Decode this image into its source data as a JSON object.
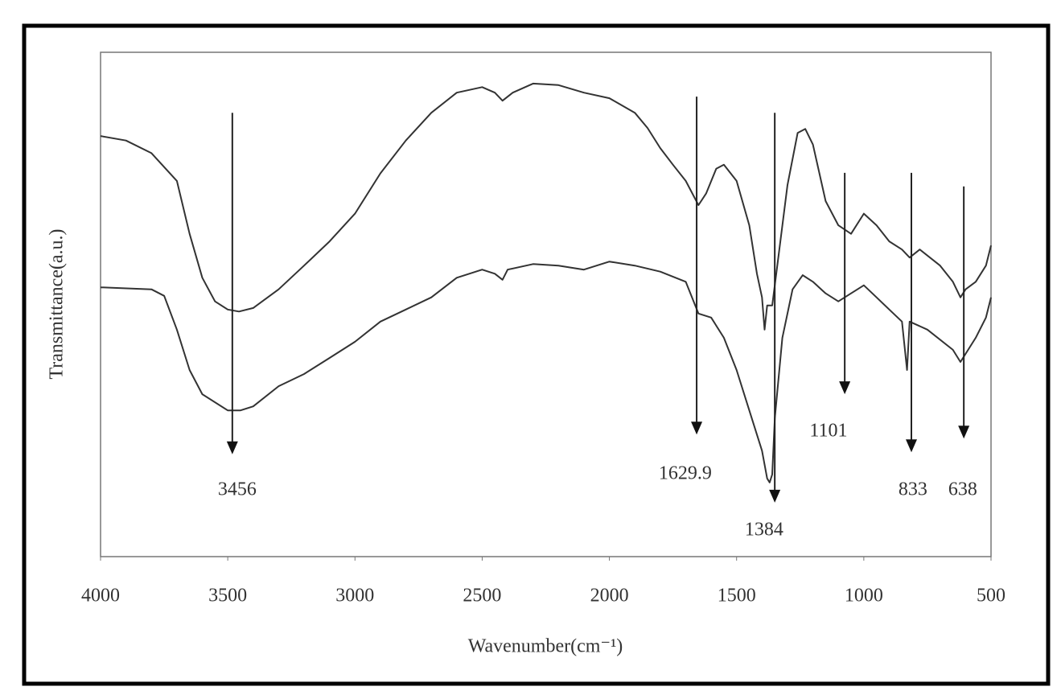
{
  "chart_data": {
    "type": "line",
    "xlabel": "Wavenumber(cm⁻¹)",
    "ylabel": "Transmittance(a.u.)",
    "xlim": [
      4000,
      500
    ],
    "xticks": [
      4000,
      3500,
      3000,
      2500,
      2000,
      1500,
      1000,
      500
    ],
    "ylim": [
      0,
      100
    ],
    "series": [
      {
        "color": "#333333",
        "x": [
          4000,
          3900,
          3800,
          3700,
          3650,
          3600,
          3550,
          3500,
          3456,
          3400,
          3300,
          3200,
          3100,
          3000,
          2900,
          2800,
          2700,
          2600,
          2500,
          2450,
          2420,
          2380,
          2300,
          2200,
          2100,
          2000,
          1900,
          1850,
          1800,
          1750,
          1700,
          1650,
          1620,
          1580,
          1550,
          1500,
          1450,
          1420,
          1400,
          1390,
          1380,
          1360,
          1340,
          1300,
          1260,
          1230,
          1200,
          1150,
          1100,
          1050,
          1000,
          950,
          900,
          850,
          820,
          780,
          700,
          650,
          620,
          600,
          560,
          520,
          500
        ],
        "values": [
          83.4,
          82.5,
          80,
          74.5,
          64,
          55.3,
          50.6,
          49,
          48.6,
          49.3,
          53,
          57.7,
          62.5,
          68,
          76,
          82.5,
          88,
          92,
          93.1,
          92,
          90.4,
          92,
          93.8,
          93.5,
          92,
          90.9,
          88,
          85,
          81,
          77.7,
          74.5,
          69.7,
          72,
          76.9,
          77.7,
          74.5,
          65.7,
          56.1,
          51.4,
          45,
          49.8,
          49.8,
          57.7,
          73.7,
          84,
          84.8,
          81.7,
          70.5,
          65.7,
          64,
          68,
          65.7,
          62.5,
          60.9,
          59.3,
          60.9,
          57.7,
          54.5,
          51.4,
          53,
          54.5,
          57.7,
          61.7
        ]
      },
      {
        "color": "#333333",
        "x": [
          4000,
          3800,
          3750,
          3700,
          3650,
          3600,
          3500,
          3450,
          3400,
          3300,
          3200,
          3100,
          3000,
          2900,
          2800,
          2700,
          2600,
          2500,
          2450,
          2420,
          2400,
          2300,
          2200,
          2100,
          2000,
          1900,
          1800,
          1700,
          1650,
          1600,
          1550,
          1500,
          1450,
          1400,
          1380,
          1370,
          1360,
          1350,
          1320,
          1280,
          1240,
          1200,
          1150,
          1100,
          1050,
          1000,
          950,
          900,
          850,
          830,
          820,
          750,
          650,
          620,
          600,
          560,
          520,
          500
        ],
        "values": [
          53.4,
          53,
          51.7,
          45,
          37,
          32.2,
          29,
          29,
          29.8,
          33.8,
          36.2,
          39.4,
          42.6,
          46.6,
          49,
          51.4,
          55.3,
          56.9,
          56.1,
          54.9,
          56.9,
          58,
          57.7,
          56.9,
          58.5,
          57.7,
          56.5,
          54.5,
          48.2,
          47.4,
          43.4,
          37,
          29,
          21,
          15.5,
          14.7,
          16.3,
          27.4,
          43.4,
          53,
          55.8,
          54.5,
          52.2,
          50.6,
          52.2,
          53.8,
          51.4,
          49,
          46.6,
          37,
          46.6,
          45,
          41,
          38.6,
          40.2,
          43.4,
          47.4,
          51.4
        ]
      }
    ],
    "annotations": [
      {
        "text": "3456",
        "x": 3482,
        "y_from": 88,
        "y_to": 20.3,
        "label_x": 3463,
        "label_y": 13.1
      },
      {
        "text": "1629.9",
        "x": 1657,
        "y_from": 91.2,
        "y_to": 24.2,
        "label_x": 1702,
        "label_y": 16.3
      },
      {
        "text": "1384",
        "x": 1350,
        "y_from": 88,
        "y_to": 10.7,
        "label_x": 1392,
        "label_y": 5.1
      },
      {
        "text": "1101",
        "x": 1075,
        "y_from": 76.1,
        "y_to": 32.2,
        "label_x": 1139,
        "label_y": 24.7
      },
      {
        "text": "833",
        "x": 813,
        "y_from": 76.1,
        "y_to": 20.7,
        "label_x": 807,
        "label_y": 13.1
      },
      {
        "text": "638",
        "x": 607,
        "y_from": 73.4,
        "y_to": 23.4,
        "label_x": 611,
        "label_y": 13.1
      }
    ]
  }
}
